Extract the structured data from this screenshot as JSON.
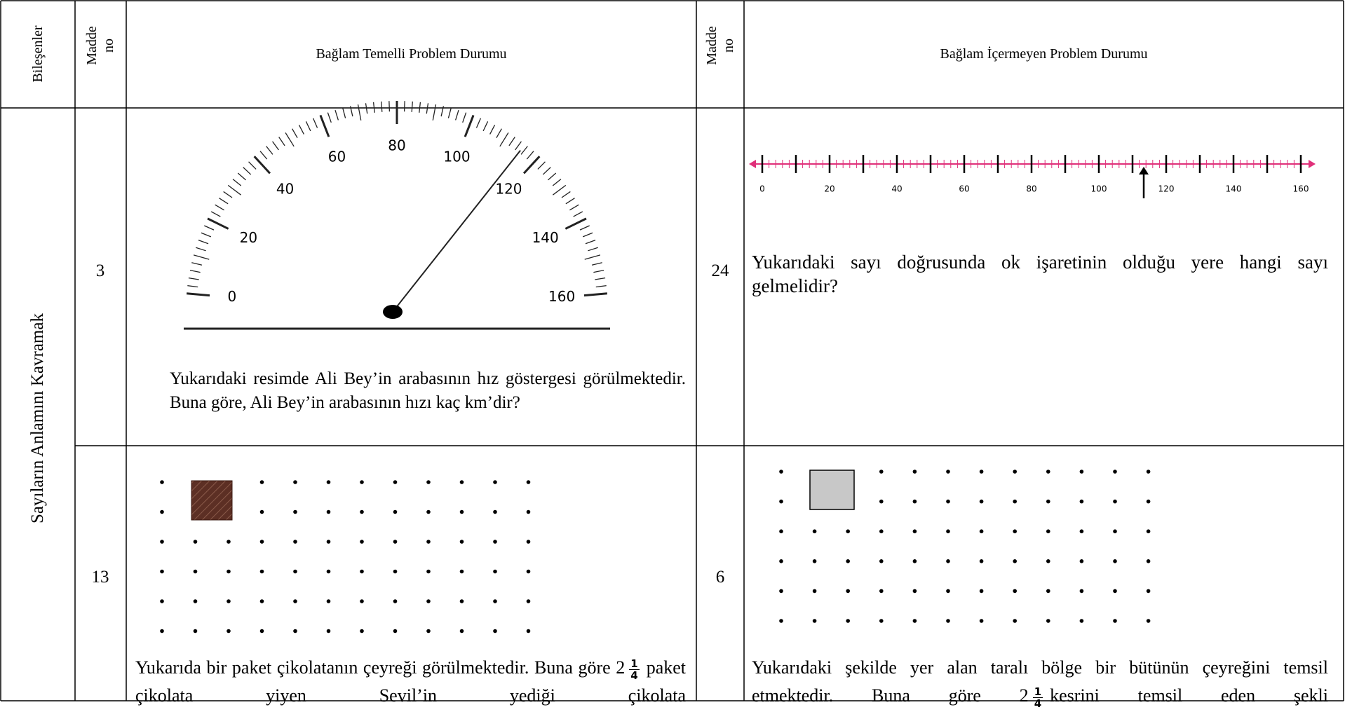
{
  "table": {
    "headers": [
      "Bileşenler",
      "Madde no",
      "Bağlam Temelli Problem Durumu",
      "Madde no",
      "Bağlam İçermeyen Problem Durumu"
    ],
    "component": "Sayıların Anlamını Kavramak",
    "rows": [
      {
        "context_item": "3",
        "speedometer_labels": [
          "0",
          "20",
          "40",
          "60",
          "80",
          "100",
          "120",
          "140",
          "160"
        ],
        "context_text": "Yukarıdaki resimde Ali Bey’in arabasının hız göstergesi görülmektedir. Buna göre, Ali Bey’in arabasının hızı kaç km’dir?",
        "plain_item": "24",
        "number_line_labels": [
          "0",
          "20",
          "40",
          "60",
          "80",
          "100",
          "120",
          "140",
          "160"
        ],
        "plain_text": "Yukarıdaki sayı doğrusunda ok işaretinin olduğu yere hangi sayı gelmelidir?"
      },
      {
        "context_item": "13",
        "context_text_before": "Yukarıda bir paket çikolatanın çeyreği görülmektedir. Buna göre 2",
        "context_numerator": "1",
        "context_denominator": "4",
        "context_text_after": "paket çikolata yiyen Sevil’in yediği çikolata",
        "plain_item": "6",
        "plain_text_before": "Yukarıdaki şekilde yer alan taralı bölge bir bütünün çeyreğini temsil etmektedir.  Buna göre 2",
        "plain_numerator": "1",
        "plain_denominator": "4",
        "plain_text_after": "kesrini temsil eden şekli"
      }
    ]
  }
}
